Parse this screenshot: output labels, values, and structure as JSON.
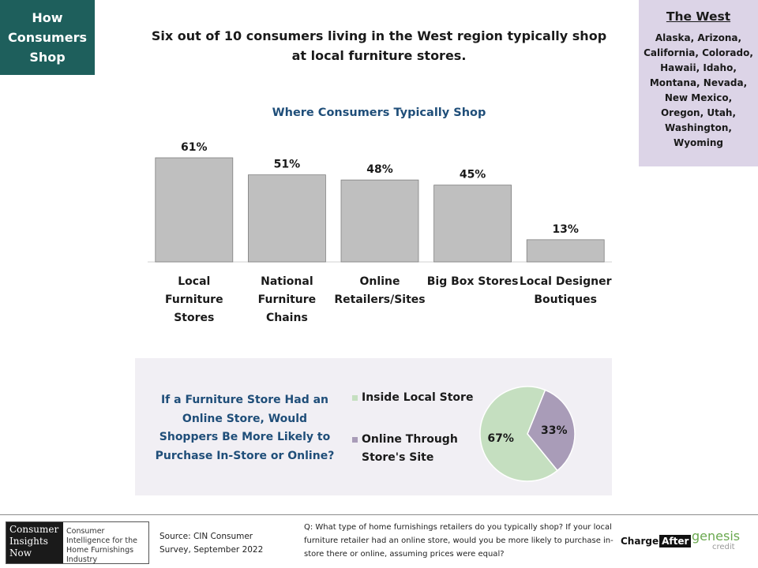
{
  "tag": {
    "lines": [
      "How",
      "Consumers",
      "Shop"
    ]
  },
  "headline": "Six out of 10 consumers living in the West region typically shop at local furniture stores.",
  "region": {
    "title": "The West",
    "states": "Alaska, Arizona, California, Colorado, Hawaii, Idaho, Montana, Nevada, New Mexico, Oregon, Utah, Washington, Wyoming"
  },
  "chart_data": [
    {
      "type": "bar",
      "title": "Where Consumers Typically Shop",
      "categories": [
        "Local Furniture Stores",
        "National Furniture Chains",
        "Online Retailers/Sites",
        "Big Box Stores",
        "Local Designer Boutiques"
      ],
      "values": [
        61,
        51,
        48,
        45,
        13
      ],
      "value_labels": [
        "61%",
        "51%",
        "48%",
        "45%",
        "13%"
      ],
      "unit": "%",
      "ylim": [
        0,
        61
      ],
      "grid": false,
      "bar_color": "#bfbfbf"
    },
    {
      "type": "pie",
      "title": "If a Furniture Store Had an Online Store, Would Shoppers Be More Likely to Purchase In-Store or Online?",
      "slices": [
        {
          "label": "Inside Local Store",
          "value": 67,
          "value_label": "67%",
          "color": "#c5dfc0"
        },
        {
          "label": "Online Through Store's Site",
          "value": 33,
          "value_label": "33%",
          "color": "#a99cb8"
        }
      ],
      "legend_position": "left"
    }
  ],
  "footer": {
    "logo_main": "Consumer Insights Now",
    "logo_sub": "Consumer Intelligence for the Home Furnishings Industry",
    "source": "Source: CIN Consumer Survey, September 2022",
    "question": "Q: What type of home furnishings retailers do you typically shop? If your local furniture retailer had an online store, would you be more likely to purchase in-store there or online, assuming prices were equal?",
    "sponsor_1_a": "Charge",
    "sponsor_1_b": "After",
    "sponsor_2": "genesis",
    "sponsor_2_sub": "credit"
  }
}
